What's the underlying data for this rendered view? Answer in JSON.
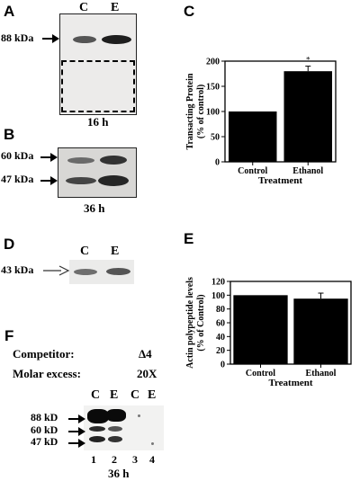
{
  "panelA": {
    "letter": "A",
    "lanes": [
      "C",
      "E"
    ],
    "marker": "88 kDa",
    "time": "16 h"
  },
  "panelB": {
    "letter": "B",
    "markers": [
      "60 kDa",
      "47 kDa"
    ],
    "time": "36 h"
  },
  "panelD": {
    "letter": "D",
    "lanes": [
      "C",
      "E"
    ],
    "marker": "43 kDa"
  },
  "panelF": {
    "letter": "F",
    "competitor_label": "Competitor:",
    "competitor_value": "Δ4",
    "molar_label": "Molar excess:",
    "molar_value": "20X",
    "lanes": [
      "C",
      "E",
      "C",
      "E"
    ],
    "lane_numbers": [
      "1",
      "2",
      "3",
      "4"
    ],
    "markers": [
      "88 kD",
      "60 kD",
      "47 kD"
    ],
    "time": "36 h"
  },
  "chart_data": [
    {
      "panel": "C",
      "type": "bar",
      "categories": [
        "Control",
        "Ethanol"
      ],
      "values": [
        100,
        180
      ],
      "errors": [
        0,
        10
      ],
      "annotations": [
        "",
        "*"
      ],
      "xlabel": "Treatment",
      "ylabel": "Transacting Protein\n(% of control)",
      "ylim": [
        0,
        200
      ],
      "yticks": [
        0,
        50,
        100,
        150,
        200
      ],
      "bar_color": "#000000"
    },
    {
      "panel": "E",
      "type": "bar",
      "categories": [
        "Control",
        "Ethanol"
      ],
      "values": [
        100,
        95
      ],
      "errors": [
        0,
        8
      ],
      "xlabel": "Treatment",
      "ylabel": "Actin polypeptide levels\n(% of Control)",
      "ylim": [
        0,
        120
      ],
      "yticks": [
        0,
        20,
        40,
        60,
        80,
        100,
        120
      ],
      "bar_color": "#000000"
    }
  ]
}
